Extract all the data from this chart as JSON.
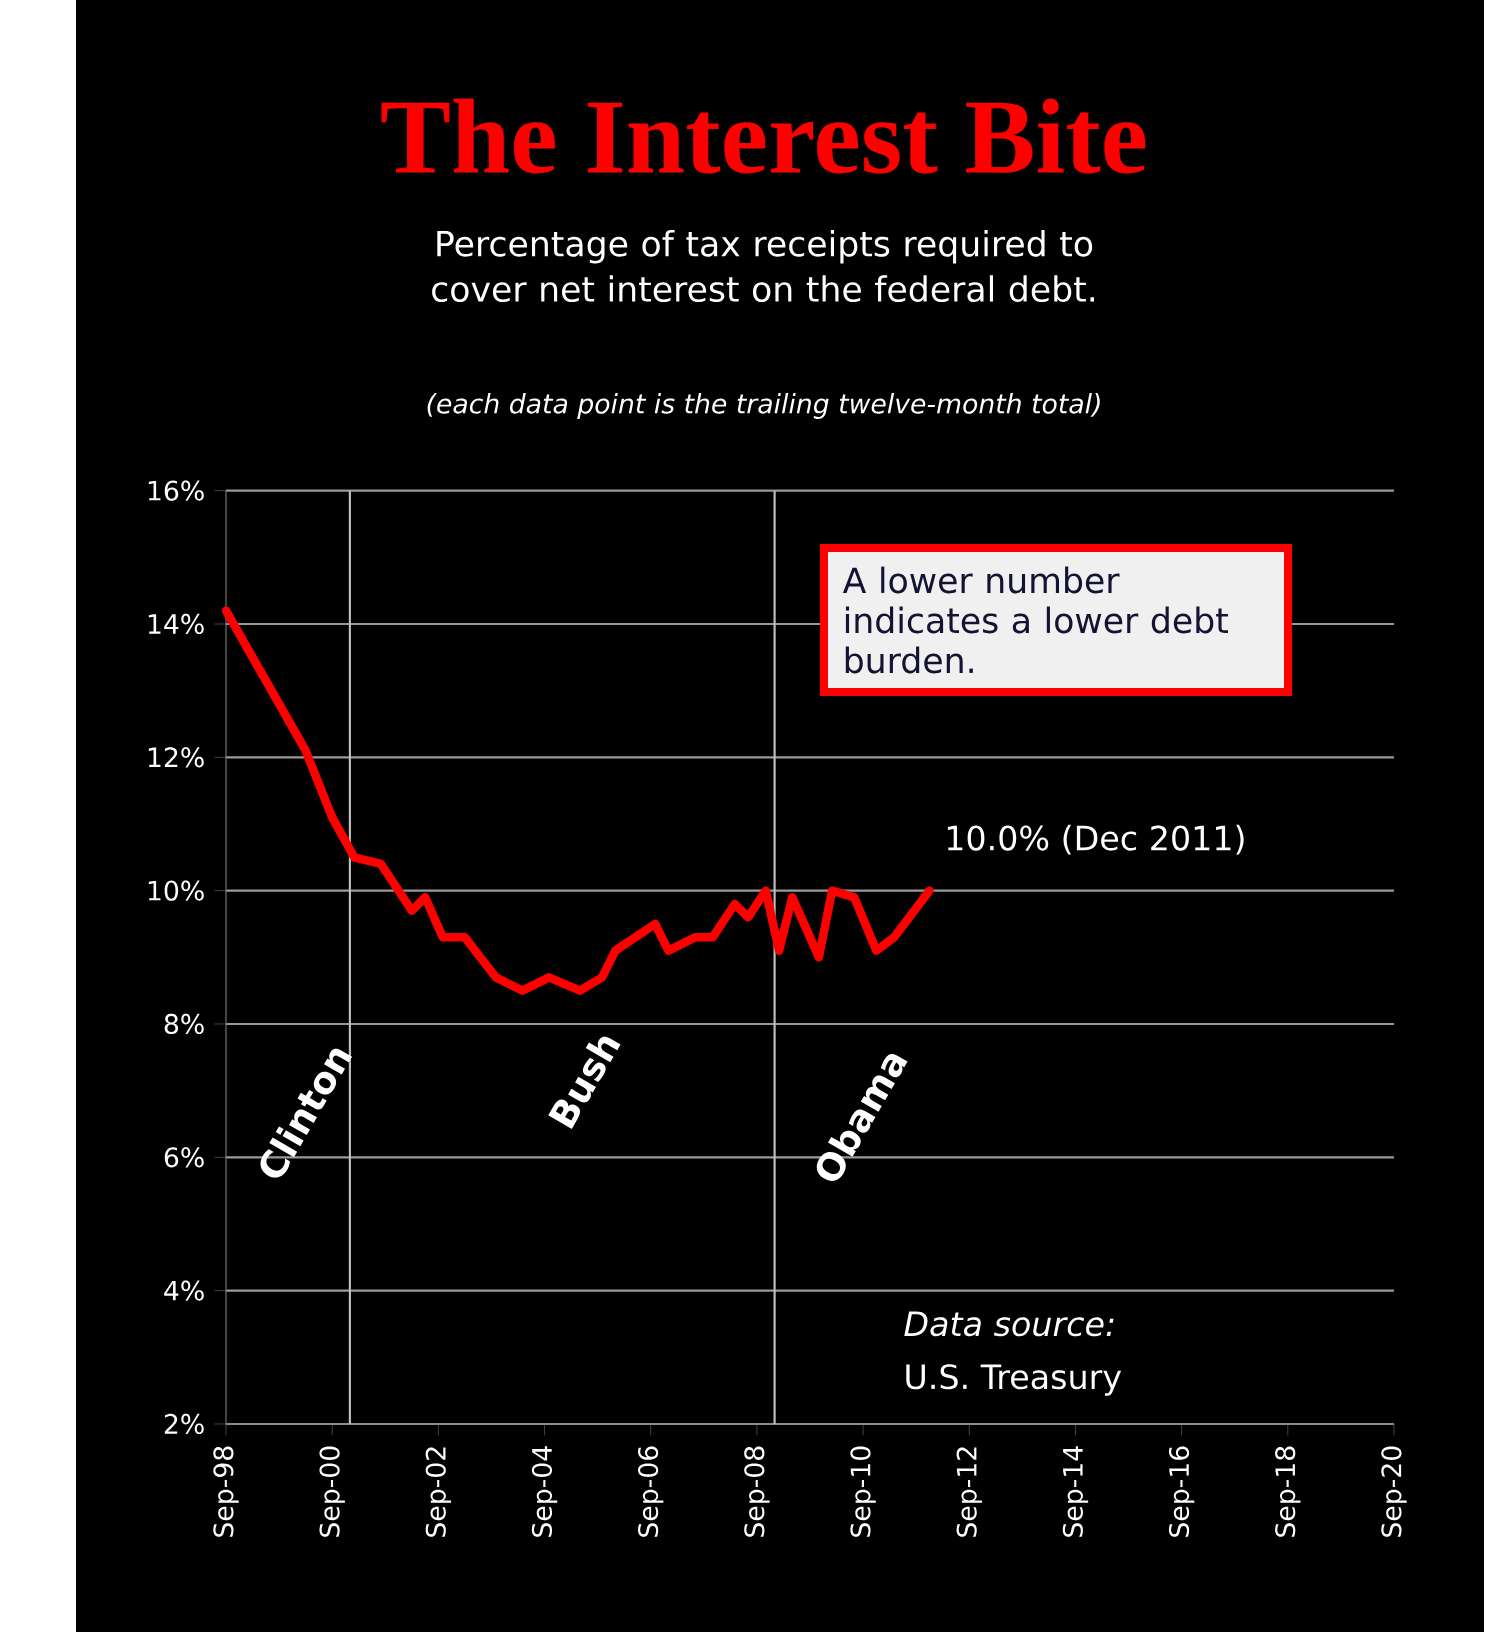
{
  "chart_data": {
    "type": "line",
    "title": "The Interest Bite",
    "subtitle": "Percentage of tax receipts required to cover net interest on the federal debt.",
    "x": [
      "1998-09",
      "1999-09",
      "2000-03",
      "2000-09",
      "2001-02",
      "2001-08",
      "2002-03",
      "2002-06",
      "2002-10",
      "2003-03",
      "2003-10",
      "2004-04",
      "2004-10",
      "2005-05",
      "2005-10",
      "2006-01",
      "2006-10",
      "2007-01",
      "2007-07",
      "2007-11",
      "2008-04",
      "2008-07",
      "2008-11",
      "2009-02",
      "2009-05",
      "2009-11",
      "2010-02",
      "2010-07",
      "2010-12",
      "2011-04",
      "2011-12"
    ],
    "series": [
      {
        "color": "#ff0000",
        "values": [
          14.2,
          12.8,
          12.1,
          11.1,
          10.5,
          10.4,
          9.7,
          9.9,
          9.3,
          9.3,
          8.7,
          8.5,
          8.7,
          8.5,
          8.7,
          9.1,
          9.5,
          9.1,
          9.3,
          9.3,
          9.8,
          9.6,
          10.0,
          9.1,
          9.9,
          9.0,
          10.0,
          9.9,
          9.1,
          9.3,
          10.0
        ]
      }
    ],
    "xlim": [
      "1998-09",
      "2020-09"
    ],
    "xticks": [
      {
        "value": "1998-09",
        "label": "Sep-98"
      },
      {
        "value": "2000-09",
        "label": "Sep-00"
      },
      {
        "value": "2002-09",
        "label": "Sep-02"
      },
      {
        "value": "2004-09",
        "label": "Sep-04"
      },
      {
        "value": "2006-09",
        "label": "Sep-06"
      },
      {
        "value": "2008-09",
        "label": "Sep-08"
      },
      {
        "value": "2010-09",
        "label": "Sep-10"
      },
      {
        "value": "2012-09",
        "label": "Sep-12"
      },
      {
        "value": "2014-09",
        "label": "Sep-14"
      },
      {
        "value": "2016-09",
        "label": "Sep-16"
      },
      {
        "value": "2018-09",
        "label": "Sep-18"
      },
      {
        "value": "2020-09",
        "label": "Sep-20"
      }
    ],
    "ylim": [
      2,
      16
    ],
    "yticks": [
      {
        "value": 2,
        "label": "2%"
      },
      {
        "value": 4,
        "label": "4%"
      },
      {
        "value": 6,
        "label": "6%"
      },
      {
        "value": 8,
        "label": "8%"
      },
      {
        "value": 10,
        "label": "10%"
      },
      {
        "value": 12,
        "label": "12%"
      },
      {
        "value": 14,
        "label": "14%"
      },
      {
        "value": 16,
        "label": "16%"
      }
    ],
    "grid": "y",
    "ref_lines": [
      {
        "axis": "x",
        "value": "2001-01",
        "color": "#c0c0c0"
      },
      {
        "axis": "x",
        "value": "2009-01",
        "color": "#c0c0c0"
      }
    ],
    "annotations": [
      "(each data point is the trailing twelve-month total)",
      "A lower number indicates a lower debt burden.",
      {
        "text": "10.0% (Dec 2011)",
        "x": "2011-12",
        "y": 10.0
      },
      "Clinton",
      "Bush",
      "Obama",
      "Data source:",
      "U.S. Treasury"
    ]
  }
}
